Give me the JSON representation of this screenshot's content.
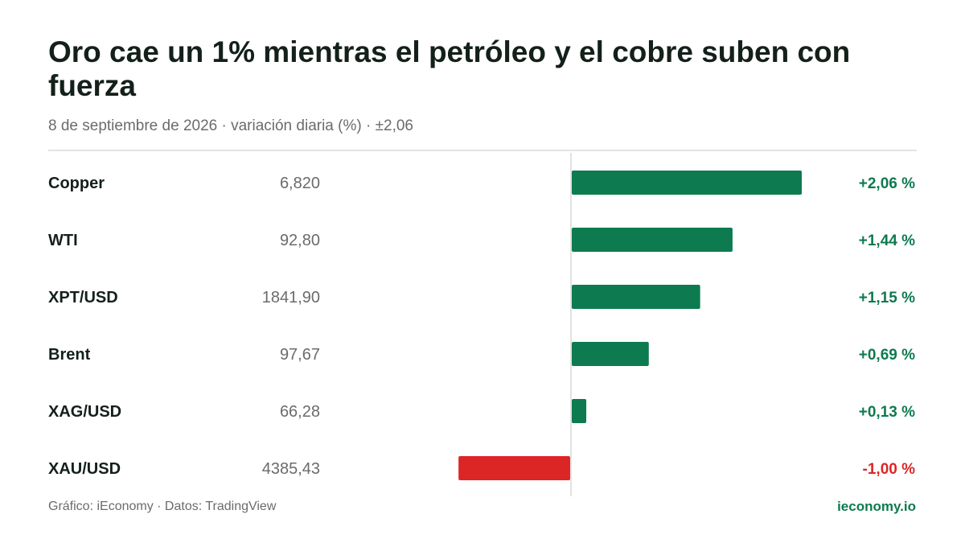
{
  "header": {
    "title": "Oro cae un 1% mientras el petróleo y el cobre suben con fuerza",
    "subtitle": "8 de septiembre de 2026 · variación diaria (%) · ±2,06"
  },
  "footer": {
    "source": "Gráfico: iEconomy · Datos: TradingView",
    "brand": "ieconomy.io"
  },
  "colors": {
    "positive": "#0e7a50",
    "negative": "#dc2626",
    "axis": "#d9d9d9"
  },
  "chart_data": {
    "type": "bar",
    "orientation": "horizontal",
    "categories": [
      "Copper",
      "WTI",
      "XPT/USD",
      "Brent",
      "XAG/USD",
      "XAU/USD"
    ],
    "prices": [
      "6,820",
      "92,80",
      "1841,90",
      "97,67",
      "66,28",
      "4385,43"
    ],
    "values": [
      2.06,
      1.44,
      1.15,
      0.69,
      0.13,
      -1.0
    ],
    "value_labels": [
      "+2,06 %",
      "+1,44 %",
      "+1,15 %",
      "+0,69 %",
      "+0,13 %",
      "-1,00 %"
    ],
    "xlim": [
      -2.06,
      2.06
    ],
    "grid": false
  }
}
